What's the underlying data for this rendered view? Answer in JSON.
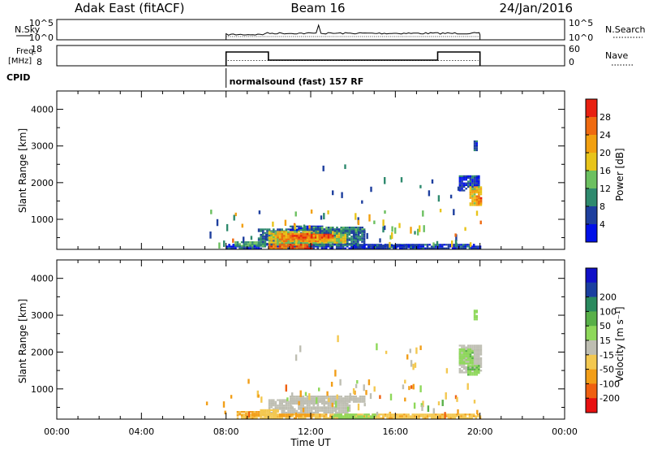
{
  "header": {
    "station": "Adak East (fitACF)",
    "beam": "Beam 16",
    "date": "24/Jan/2016"
  },
  "panels": {
    "nsky": {
      "label": "N.Sky",
      "left_ticks": [
        "10^5",
        "10^0"
      ],
      "right_ticks": [
        "10^5",
        "10^0"
      ],
      "right_label": "N.Search"
    },
    "freq": {
      "label_line1": "Freq.",
      "label_line2": "[MHz]",
      "left_ticks": [
        "18",
        "8"
      ],
      "right_ticks": [
        "60",
        "0"
      ],
      "right_label": "Nave"
    },
    "cpid": {
      "label": "CPID",
      "program": "normalsound (fast) 157 RF"
    }
  },
  "colors": {
    "power": [
      "#0010e8",
      "#1e3f9e",
      "#2f8a6e",
      "#6cc060",
      "#e8c41a",
      "#f2a010",
      "#ef6a10",
      "#e82010"
    ],
    "velocity": [
      "#e81010",
      "#ef6010",
      "#f29e18",
      "#f3c850",
      "#bebeb2",
      "#8ed85a",
      "#58b048",
      "#2a8a5e",
      "#1a3fa0",
      "#1010c8"
    ],
    "ground_scatter": "#bebeb2"
  },
  "chart_data": [
    {
      "type": "heatmap",
      "name": "power",
      "ylabel": "Slant Range [km]",
      "xlabel": "",
      "x_ticks": [
        "00:00",
        "04:00",
        "08:00",
        "12:00",
        "16:00",
        "20:00",
        "00:00"
      ],
      "x_range_hours": [
        0,
        24
      ],
      "y_ticks": [
        "1000",
        "2000",
        "3000",
        "4000"
      ],
      "y_range_km": [
        180,
        4500
      ],
      "colorbar": {
        "label": "Power [dB]",
        "ticks": [
          "4",
          "8",
          "12",
          "16",
          "20",
          "24",
          "28"
        ],
        "range": [
          0,
          32
        ]
      },
      "echoes": [
        {
          "t0": 8.0,
          "t1": 20.0,
          "r0": 200,
          "r1": 330,
          "v": 5
        },
        {
          "t0": 8.4,
          "t1": 9.8,
          "r0": 260,
          "r1": 400,
          "v": 12
        },
        {
          "t0": 9.5,
          "t1": 14.5,
          "r0": 300,
          "r1": 750,
          "v": 8
        },
        {
          "t0": 10.0,
          "t1": 13.6,
          "r0": 360,
          "r1": 680,
          "v": 17
        },
        {
          "t0": 10.4,
          "t1": 12.8,
          "r0": 420,
          "r1": 620,
          "v": 23
        },
        {
          "t0": 10.0,
          "t1": 12.0,
          "r0": 220,
          "r1": 330,
          "v": 26
        },
        {
          "t0": 11.0,
          "t1": 13.0,
          "r0": 500,
          "r1": 620,
          "v": 28
        },
        {
          "t0": 11.0,
          "t1": 12.5,
          "r0": 700,
          "r1": 830,
          "v": 6
        },
        {
          "t0": 12.0,
          "t1": 14.5,
          "r0": 650,
          "r1": 800,
          "v": 9
        },
        {
          "t0": 14.0,
          "t1": 17.0,
          "r0": 220,
          "r1": 310,
          "v": 5
        },
        {
          "t0": 19.0,
          "t1": 19.9,
          "r0": 1800,
          "r1": 2200,
          "v": 5
        },
        {
          "t0": 19.5,
          "t1": 20.0,
          "r0": 1400,
          "r1": 1900,
          "v": 19
        },
        {
          "t0": 19.8,
          "t1": 20.0,
          "r0": 1450,
          "r1": 1650,
          "v": 25
        },
        {
          "t0": 19.7,
          "t1": 19.85,
          "r0": 2900,
          "r1": 3150,
          "v": 5
        }
      ],
      "sparse": [
        {
          "t0": 7.0,
          "t1": 20.0,
          "r0": 350,
          "r1": 1300,
          "n": 70,
          "vmin": 4,
          "vmax": 26
        },
        {
          "t0": 11.0,
          "t1": 19.0,
          "r0": 1500,
          "r1": 2500,
          "n": 14,
          "vmin": 4,
          "vmax": 10
        }
      ]
    },
    {
      "type": "heatmap",
      "name": "velocity",
      "ylabel": "Slant Range [km]",
      "xlabel": "Time UT",
      "x_ticks": [
        "00:00",
        "04:00",
        "08:00",
        "12:00",
        "16:00",
        "20:00",
        "00:00"
      ],
      "x_range_hours": [
        0,
        24
      ],
      "y_ticks": [
        "1000",
        "2000",
        "3000",
        "4000"
      ],
      "y_range_km": [
        180,
        4500
      ],
      "colorbar": {
        "label": "Velocity [m s⁻¹]",
        "ticks": [
          "-200",
          "-100",
          "-50",
          "-15",
          "15",
          "50",
          "100",
          "200"
        ],
        "range": [
          -250,
          250
        ]
      },
      "echoes": [
        {
          "t0": 8.5,
          "t1": 20.0,
          "r0": 200,
          "r1": 330,
          "v": -40
        },
        {
          "t0": 8.5,
          "t1": 9.8,
          "r0": 260,
          "r1": 400,
          "v": -60
        },
        {
          "t0": 10.0,
          "t1": 13.8,
          "r0": 380,
          "r1": 720,
          "v": 0
        },
        {
          "t0": 9.6,
          "t1": 10.4,
          "r0": 300,
          "r1": 450,
          "v": -30
        },
        {
          "t0": 11.0,
          "t1": 14.5,
          "r0": 650,
          "r1": 820,
          "v": 0
        },
        {
          "t0": 10.5,
          "t1": 12.0,
          "r0": 250,
          "r1": 330,
          "v": -80
        },
        {
          "t0": 13.0,
          "t1": 15.0,
          "r0": 220,
          "r1": 330,
          "v": 30
        },
        {
          "t0": 19.0,
          "t1": 20.0,
          "r0": 1450,
          "r1": 2200,
          "v": 0
        },
        {
          "t0": 19.0,
          "t1": 19.6,
          "r0": 1700,
          "r1": 2100,
          "v": 40
        },
        {
          "t0": 19.4,
          "t1": 19.9,
          "r0": 1400,
          "r1": 1650,
          "v": 45
        },
        {
          "t0": 19.7,
          "t1": 19.85,
          "r0": 2900,
          "r1": 3150,
          "v": 30
        }
      ],
      "sparse": [
        {
          "t0": 7.0,
          "t1": 20.0,
          "r0": 350,
          "r1": 1300,
          "n": 70,
          "vmin": -120,
          "vmax": 60
        },
        {
          "t0": 11.0,
          "t1": 19.0,
          "r0": 1500,
          "r1": 2500,
          "n": 14,
          "vmin": -60,
          "vmax": 20
        }
      ]
    }
  ]
}
